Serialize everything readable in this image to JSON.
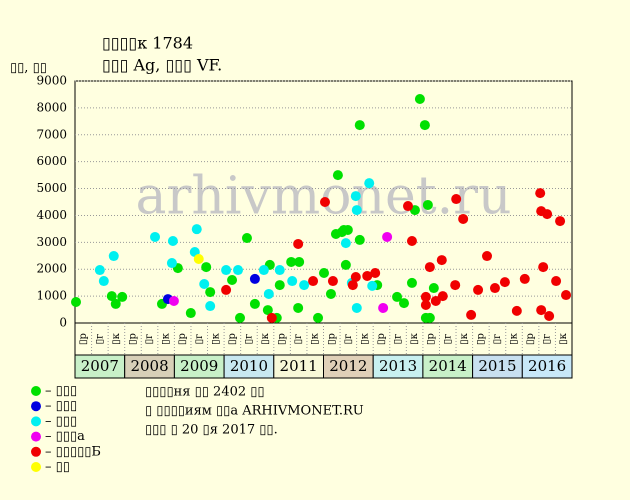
{
  "chart_data": {
    "type": "scatter",
    "title": "▯▯▯▯к 1784",
    "subtitle": "▯▯▯ Ag, ▯▯▯ VF.",
    "y_label": "▯▯, ▯▯",
    "watermark": "arhivmonet.ru",
    "xlim": [
      2007,
      2017
    ],
    "ylim": [
      0,
      9000
    ],
    "yticks": [
      0,
      1000,
      2000,
      3000,
      4000,
      5000,
      6000,
      7000,
      8000,
      9000
    ],
    "grid": true,
    "years": [
      2007,
      2008,
      2009,
      2010,
      2011,
      2012,
      2013,
      2014,
      2015,
      2016
    ],
    "year_colors": [
      "#c8f0c8",
      "#d8d0b8",
      "#c8f0c8",
      "#c8e8f0",
      "#f8f8d8",
      "#e0d0b8",
      "#c8f0f0",
      "#c8f0c8",
      "#c8e0f0",
      "#c8e8f8"
    ],
    "x_sub_labels": [
      "▯р",
      "▯г",
      "▯к"
    ],
    "notes": [
      "▯▯▯▯ня ▯▯ 2402 ▯▯",
      "▯ ▯▯▯▯иям ▯▯а ARHIVMONET.RU",
      "▯▯▯ ▯ 20 ▯я 2017 ▯▯."
    ],
    "series": [
      {
        "name": "– ▯▯▯",
        "color": "#00e000",
        "x": [
          2007.02,
          2007.74,
          2007.82,
          2007.95,
          2008.75,
          2009.07,
          2009.33,
          2009.64,
          2009.72,
          2010.16,
          2010.32,
          2010.46,
          2010.62,
          2010.88,
          2010.92,
          2011.06,
          2011.12,
          2011.35,
          2011.51,
          2011.49,
          2011.89,
          2012.01,
          2012.15,
          2012.25,
          2012.29,
          2012.37,
          2012.41,
          2012.45,
          2012.49,
          2012.73,
          2012.73,
          2013.08,
          2013.48,
          2013.62,
          2013.78,
          2013.84,
          2013.94,
          2014.04,
          2014.06,
          2014.1,
          2014.14,
          2014.22
        ],
        "values": [
          780,
          1000,
          710,
          970,
          710,
          2040,
          370,
          2080,
          1150,
          1600,
          190,
          3160,
          710,
          480,
          2160,
          190,
          1410,
          2270,
          2270,
          560,
          190,
          1860,
          1080,
          3310,
          5500,
          3380,
          3460,
          2160,
          3460,
          7360,
          3090,
          1410,
          970,
          740,
          1490,
          4200,
          8330,
          7360,
          190,
          4390,
          190,
          1300
        ]
      },
      {
        "name": "– ▯▯▯",
        "color": "#0000e0",
        "x": [
          2008.87,
          2010.62
        ],
        "values": [
          890,
          1640
        ]
      },
      {
        "name": "– ▯▯▯",
        "color": "#00f0f0",
        "x": [
          2007.5,
          2007.58,
          2007.78,
          2008.61,
          2008.97,
          2008.95,
          2009.41,
          2009.45,
          2009.6,
          2009.72,
          2010.04,
          2010.28,
          2010.8,
          2010.9,
          2011.12,
          2011.37,
          2011.61,
          2012.45,
          2012.57,
          2012.65,
          2012.67,
          2012.67,
          2012.92,
          2012.98
        ],
        "values": [
          1970,
          1560,
          2490,
          3200,
          3050,
          2230,
          2640,
          3490,
          1450,
          630,
          1970,
          1970,
          1970,
          1080,
          1970,
          1560,
          1410,
          2970,
          1490,
          4720,
          4200,
          560,
          5200,
          1380
        ]
      },
      {
        "name": "– ▯▯▯а",
        "color": "#f000f0",
        "x": [
          2008.99,
          2013.2,
          2013.28
        ],
        "values": [
          820,
          560,
          3200
        ]
      },
      {
        "name": "– ▯▯▯▯▯Б",
        "color": "#f00000",
        "x": [
          2010.04,
          2010.96,
          2011.49,
          2011.79,
          2012.03,
          2012.19,
          2012.59,
          2012.65,
          2012.88,
          2013.04,
          2013.7,
          2013.78,
          2014.06,
          2014.06,
          2014.14,
          2014.26,
          2014.38,
          2014.4,
          2014.65,
          2014.67,
          2014.81,
          2014.97,
          2015.11,
          2015.29,
          2015.45,
          2015.65,
          2015.89,
          2016.05,
          2016.36,
          2016.38,
          2016.38,
          2016.42,
          2016.5,
          2016.54,
          2016.68,
          2016.76,
          2016.88
        ],
        "values": [
          1230,
          190,
          2940,
          1560,
          4500,
          1560,
          1410,
          1710,
          1750,
          1860,
          4350,
          3050,
          970,
          670,
          2080,
          820,
          2340,
          1000,
          1410,
          4610,
          3870,
          300,
          1230,
          2490,
          1300,
          1520,
          450,
          1640,
          4830,
          4160,
          480,
          2080,
          4050,
          260,
          1560,
          3790,
          1040
        ]
      },
      {
        "name": "– ▯▯",
        "color": "#ffff00",
        "x": [
          2009.49
        ],
        "values": [
          2380
        ]
      }
    ]
  }
}
